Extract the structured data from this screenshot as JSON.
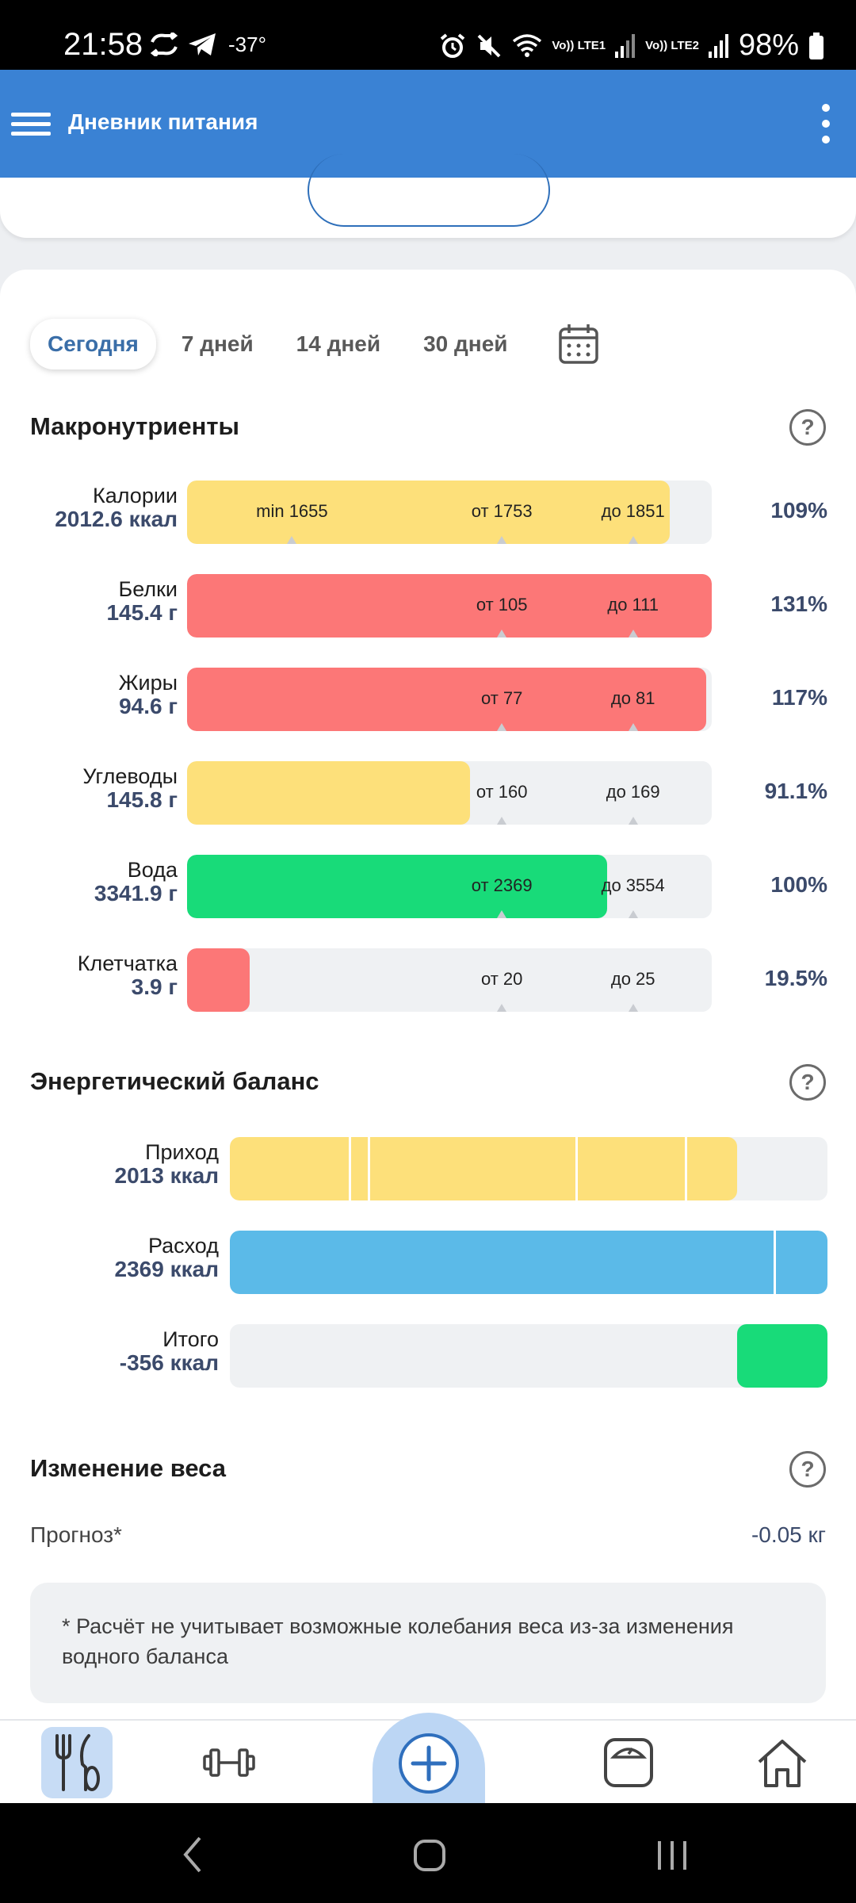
{
  "status": {
    "time": "21:58",
    "temp": "-37°",
    "lte1": "Vo)) LTE1",
    "lte2": "Vo)) LTE2",
    "battery": "98%"
  },
  "appbar": {
    "title": "Дневник питания"
  },
  "tabs": [
    "Сегодня",
    "7 дней",
    "14 дней",
    "30 дней"
  ],
  "macros": {
    "title": "Макронутриенты",
    "rows": [
      {
        "name": "Калории",
        "value": "2012.6 ккал",
        "pct": "109%",
        "fill_pct": 92,
        "color": "#fde07a",
        "marks": [
          "min 1655",
          "от 1753",
          "до 1851"
        ]
      },
      {
        "name": "Белки",
        "value": "145.4 г",
        "pct": "131%",
        "fill_pct": 100,
        "color": "#fc7777",
        "marks": [
          "от 105",
          "до 111"
        ]
      },
      {
        "name": "Жиры",
        "value": "94.6 г",
        "pct": "117%",
        "fill_pct": 99,
        "color": "#fc7777",
        "marks": [
          "от 77",
          "до 81"
        ]
      },
      {
        "name": "Углеводы",
        "value": "145.8 г",
        "pct": "91.1%",
        "fill_pct": 54,
        "color": "#fde07a",
        "marks": [
          "от 160",
          "до 169"
        ]
      },
      {
        "name": "Вода",
        "value": "3341.9 г",
        "pct": "100%",
        "fill_pct": 80,
        "color": "#18db79",
        "marks": [
          "от 2369",
          "до 3554"
        ]
      },
      {
        "name": "Клетчатка",
        "value": "3.9 г",
        "pct": "19.5%",
        "fill_pct": 12,
        "color": "#fc7777",
        "marks": [
          "от 20",
          "до 25"
        ]
      }
    ]
  },
  "energy": {
    "title": "Энергетический баланс",
    "rows": [
      {
        "name": "Приход",
        "value": "2013 ккал"
      },
      {
        "name": "Расход",
        "value": "2369 ккал"
      },
      {
        "name": "Итого",
        "value": "-356 ккал"
      }
    ],
    "colors": {
      "income": "#fde07a",
      "expense": "#5bbae8",
      "total": "#18db79"
    }
  },
  "weight": {
    "title": "Изменение веса",
    "forecast_label": "Прогноз*",
    "forecast_value": "-0.05 кг",
    "note": "* Расчёт не учитывает возможные колебания веса из-за изменения водного баланса"
  },
  "nav_icons": [
    "utensils-icon",
    "dumbbell-icon",
    "add-icon",
    "scale-icon",
    "home-icon"
  ]
}
